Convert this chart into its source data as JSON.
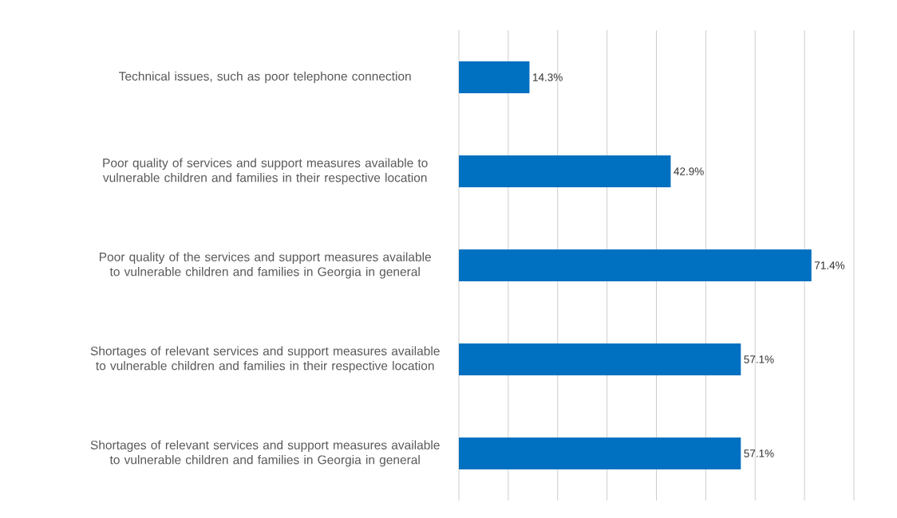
{
  "chart_data": {
    "type": "bar",
    "orientation": "horizontal",
    "categories": [
      "Technical issues, such as poor telephone connection",
      "Poor quality of services and support measures available to vulnerable children and families in their respective location",
      "Poor quality of the services and support measures available to vulnerable children and families in Georgia in general",
      "Shortages of relevant services and support measures available to vulnerable children and families in their respective location",
      "Shortages of relevant services and support measures available to vulnerable children and families in Georgia in general"
    ],
    "values": [
      14.3,
      42.9,
      71.4,
      57.1,
      57.1
    ],
    "value_labels": [
      "14.3%",
      "42.9%",
      "71.4%",
      "57.1%",
      "57.1%"
    ],
    "color": "#0070c0",
    "xlim": [
      0,
      80
    ],
    "xticks": [
      {
        "value": 0,
        "label": null
      },
      {
        "value": 10,
        "label": null
      },
      {
        "value": 20,
        "label": null
      },
      {
        "value": 30,
        "label": null
      },
      {
        "value": 40,
        "label": null
      },
      {
        "value": 50,
        "label": null
      },
      {
        "value": 60,
        "label": null
      },
      {
        "value": 70,
        "label": null
      },
      {
        "value": 80,
        "label": null
      }
    ],
    "grid": "x",
    "tick_labels": "y"
  }
}
